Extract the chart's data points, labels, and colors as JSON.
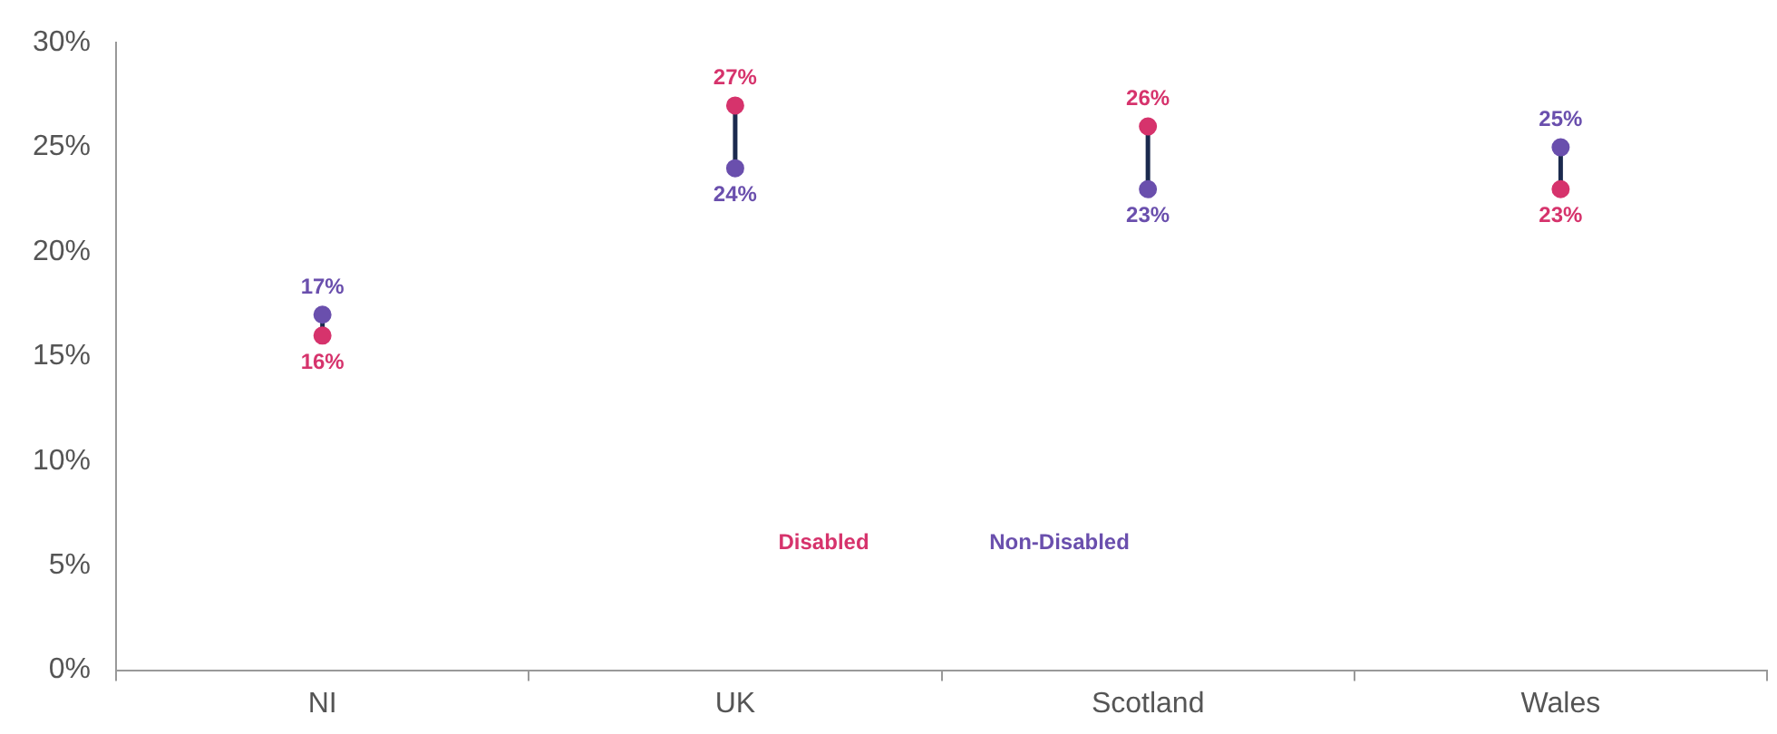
{
  "chart_data": {
    "type": "scatter",
    "categories": [
      "NI",
      "UK",
      "Scotland",
      "Wales"
    ],
    "series": [
      {
        "name": "Disabled",
        "color": "#d6336c",
        "values": [
          16,
          27,
          26,
          23
        ],
        "value_labels": [
          "16%",
          "27%",
          "26%",
          "23%"
        ]
      },
      {
        "name": "Non-Disabled",
        "color": "#6a4fad",
        "values": [
          17,
          24,
          23,
          25
        ],
        "value_labels": [
          "17%",
          "24%",
          "23%",
          "25%"
        ]
      }
    ],
    "ylim": [
      0,
      30
    ],
    "yticks": [
      {
        "value": 0,
        "label": "0%"
      },
      {
        "value": 5,
        "label": "5%"
      },
      {
        "value": 10,
        "label": "10%"
      },
      {
        "value": 15,
        "label": "15%"
      },
      {
        "value": 20,
        "label": "20%"
      },
      {
        "value": 25,
        "label": "25%"
      },
      {
        "value": 30,
        "label": "30%"
      }
    ],
    "marker": "circle",
    "legend": "bottom",
    "grid": false
  }
}
